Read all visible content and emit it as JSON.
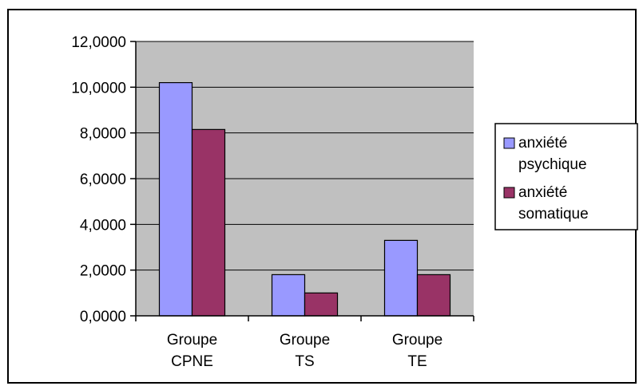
{
  "chart_data": {
    "type": "bar",
    "categories": [
      [
        "Groupe",
        "CPNE"
      ],
      [
        "Groupe",
        "TS"
      ],
      [
        "Groupe",
        "TE"
      ]
    ],
    "series": [
      {
        "name": [
          "anxiété",
          "psychique"
        ],
        "values": [
          10.2,
          1.8,
          3.3
        ],
        "color": "#9999ff"
      },
      {
        "name": [
          "anxiété",
          "somatique"
        ],
        "values": [
          8.15,
          1.0,
          1.8
        ],
        "color": "#993366"
      }
    ],
    "ylim": [
      0,
      12
    ],
    "ytick_step": 2,
    "ytick_labels": [
      "0,0000",
      "2,0000",
      "4,0000",
      "6,0000",
      "8,0000",
      "10,0000",
      "12,0000"
    ],
    "grid": true,
    "plot_background": "#c0c0c0",
    "legend_position": "right"
  }
}
